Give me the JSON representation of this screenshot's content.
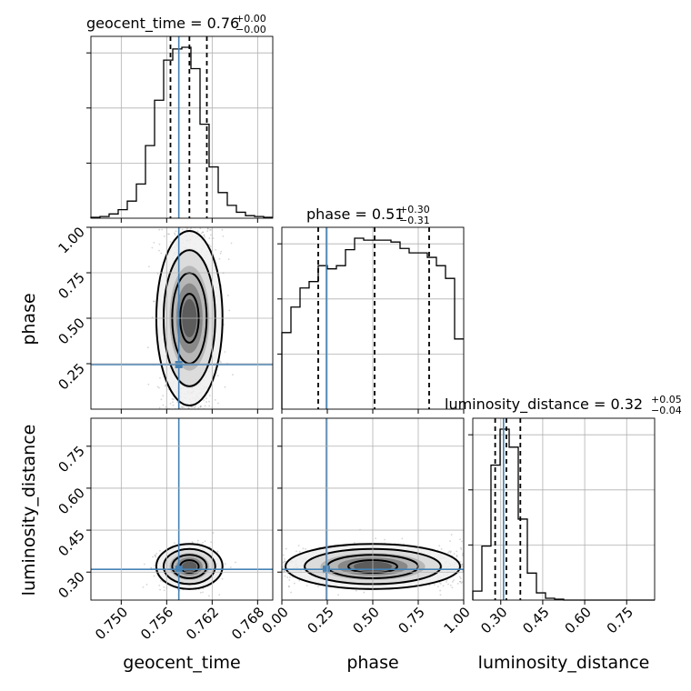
{
  "chart_data": {
    "type": "corner",
    "parameters": [
      "geocent_time",
      "phase",
      "luminosity_distance"
    ],
    "titles": [
      {
        "text": "geocent_time = 0.76",
        "upper": "+0.00",
        "lower": "−0.00"
      },
      {
        "text": "phase = 0.51",
        "upper": "+0.30",
        "lower": "−0.31"
      },
      {
        "text": "luminosity_distance = 0.32",
        "upper": "+0.05",
        "lower": "−0.04"
      }
    ],
    "ranges": {
      "geocent_time": [
        0.746,
        0.77
      ],
      "phase": [
        0.0,
        1.0
      ],
      "luminosity_distance": [
        0.2,
        0.85
      ]
    },
    "ticks": {
      "geocent_time": {
        "values": [
          0.75,
          0.756,
          0.762,
          0.768
        ],
        "labels": [
          "0.750",
          "0.756",
          "0.762",
          "0.768"
        ]
      },
      "phase": {
        "values": [
          0.0,
          0.25,
          0.5,
          0.75,
          1.0
        ],
        "labels": [
          "0.00",
          "0.25",
          "0.50",
          "0.75",
          "1.00"
        ]
      },
      "phase_y": {
        "values": [
          0.25,
          0.5,
          0.75,
          1.0
        ],
        "labels": [
          "0.25",
          "0.50",
          "0.75",
          "1.00"
        ]
      },
      "luminosity_distance": {
        "values": [
          0.3,
          0.45,
          0.6,
          0.75
        ],
        "labels": [
          "0.30",
          "0.45",
          "0.60",
          "0.75"
        ]
      },
      "luminosity_distance_y": {
        "values": [
          0.3,
          0.45,
          0.6,
          0.75
        ],
        "labels": [
          "0.30",
          "0.45",
          "0.60",
          "0.75"
        ]
      }
    },
    "truths": {
      "geocent_time": 0.7576,
      "phase": 0.245,
      "luminosity_distance": 0.31
    },
    "quantiles": {
      "geocent_time": [
        0.7565,
        0.759,
        0.7613
      ],
      "phase": [
        0.2,
        0.51,
        0.81
      ],
      "luminosity_distance": [
        0.28,
        0.32,
        0.37
      ]
    },
    "histograms": {
      "geocent_time": {
        "edges_start": 0.746,
        "bin_width": 0.0012,
        "counts": [
          1,
          2,
          5,
          10,
          20,
          40,
          85,
          138,
          185,
          198,
          200,
          175,
          110,
          60,
          30,
          15,
          7,
          3,
          2,
          1
        ]
      },
      "phase": {
        "edges_start": 0.0,
        "bin_width": 0.05,
        "counts": [
          120,
          160,
          190,
          200,
          225,
          220,
          225,
          250,
          268,
          265,
          265,
          265,
          262,
          252,
          245,
          245,
          238,
          225,
          205,
          110
        ]
      },
      "luminosity_distance": {
        "edges_start": 0.2,
        "bin_width": 0.0325,
        "counts": [
          10,
          60,
          150,
          190,
          170,
          90,
          30,
          8,
          2,
          1,
          0,
          0,
          0,
          0,
          0,
          0,
          0,
          0,
          0,
          0
        ]
      }
    },
    "axis_labels": {
      "geocent_time": "geocent_time",
      "phase": "phase",
      "luminosity_distance": "luminosity_distance"
    },
    "grid": true,
    "colors": {
      "hist": "#000000",
      "truth": "#4682b4",
      "quantile": "#000000",
      "grid": "#b0b0b0",
      "points": "#888888"
    }
  }
}
